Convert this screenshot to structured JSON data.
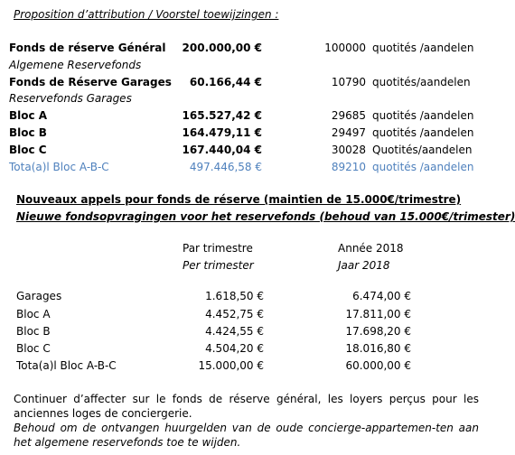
{
  "title": "Proposition d’attribution / Voorstel toewijzingen :",
  "funds": [
    {
      "label": "Fonds de réserve Général",
      "sub": "Algemene Reservefonds",
      "amount": "200.000,00 €",
      "quotites": "100000",
      "unit": "quotités /aandelen"
    },
    {
      "label": "Fonds de Réserve Garages",
      "sub": "Reservefonds Garages",
      "amount": "60.166,44 €",
      "quotites": "10790",
      "unit": "quotités/aandelen"
    },
    {
      "label": "Bloc A",
      "amount": "165.527,42 €",
      "quotites": "29685",
      "unit": "quotités /aandelen"
    },
    {
      "label": "Bloc B",
      "amount": "164.479,11 €",
      "quotites": "29497",
      "unit": "quotités /aandelen"
    },
    {
      "label": "Bloc C",
      "amount": "167.440,04 €",
      "quotites": "30028",
      "unit": "Quotités/aandelen"
    },
    {
      "label": "Tota(a)l  Bloc A-B-C",
      "amount": "497.446,58 €",
      "quotites": "89210",
      "unit": "quotités /aandelen"
    }
  ],
  "section2": {
    "heading_fr": "Nouveaux appels pour fonds de réserve (maintien de 15.000€/trimestre)",
    "heading_nl": "Nieuwe fondsopvragingen voor het reservefonds (behoud van 15.000€/trimester)",
    "col1_fr": "Par trimestre",
    "col1_nl": "Per trimester",
    "col2_fr": "Année 2018",
    "col2_nl": "Jaar 2018",
    "rows": [
      {
        "label": "Garages",
        "q": "1.618,50 €",
        "y": "6.474,00 €"
      },
      {
        "label": "Bloc A",
        "q": "4.452,75 €",
        "y": "17.811,00 €"
      },
      {
        "label": "Bloc B",
        "q": "4.424,55 €",
        "y": "17.698,20 €"
      },
      {
        "label": "Bloc C",
        "q": "4.504,20 €",
        "y": "18.016,80 €"
      },
      {
        "label": "Tota(a)l  Bloc A-B-C",
        "q": "15.000,00 €",
        "y": "60.000,00 €"
      }
    ]
  },
  "closing_fr": "Continuer d’affecter sur le fonds de réserve général, les loyers perçus pour les anciennes loges de conciergerie.",
  "closing_nl": "Behoud om de ontvangen huurgelden van de oude concierge-appartemen-ten aan het algemene reservefonds toe te wijden."
}
